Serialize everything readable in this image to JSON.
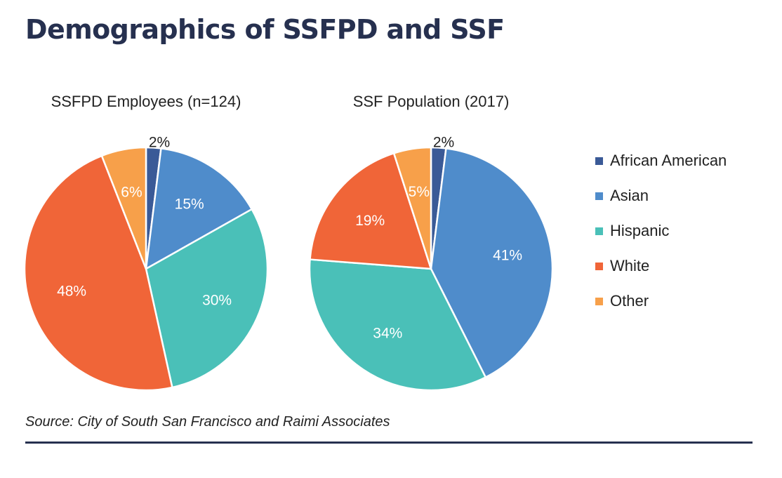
{
  "page": {
    "title": "Demographics of SSFPD and SSF",
    "source": "Source: City of South San Francisco and Raimi Associates"
  },
  "legend": [
    {
      "label": "African American",
      "color": "#3a5a97"
    },
    {
      "label": "Asian",
      "color": "#4f8ccb"
    },
    {
      "label": "Hispanic",
      "color": "#4ac0b8"
    },
    {
      "label": "White",
      "color": "#f06538"
    },
    {
      "label": "Other",
      "color": "#f7a04a"
    }
  ],
  "chart_data": [
    {
      "type": "pie",
      "title": "SSFPD Employees (n=124)",
      "categories": [
        "African American",
        "Asian",
        "Hispanic",
        "White",
        "Other"
      ],
      "values": [
        2,
        15,
        30,
        48,
        6
      ],
      "labels": [
        "2%",
        "15%",
        "30%",
        "48%",
        "6%"
      ],
      "colors": [
        "#3a5a97",
        "#4f8ccb",
        "#4ac0b8",
        "#f06538",
        "#f7a04a"
      ]
    },
    {
      "type": "pie",
      "title": "SSF Population (2017)",
      "categories": [
        "African American",
        "Asian",
        "Hispanic",
        "White",
        "Other"
      ],
      "values": [
        2,
        41,
        34,
        19,
        5
      ],
      "labels": [
        "2%",
        "41%",
        "34%",
        "19%",
        "5%"
      ],
      "colors": [
        "#3a5a97",
        "#4f8ccb",
        "#4ac0b8",
        "#f06538",
        "#f7a04a"
      ]
    }
  ]
}
